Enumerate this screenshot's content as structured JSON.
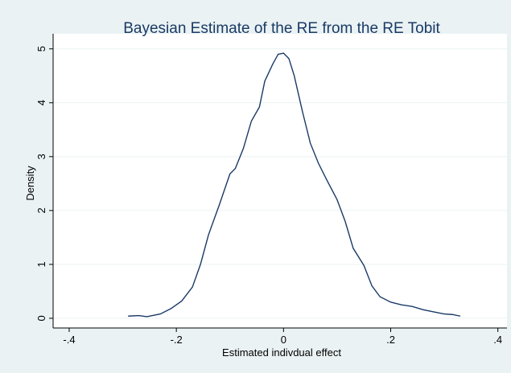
{
  "chart_data": {
    "type": "line",
    "title": "Bayesian Estimate of the RE from the RE Tobit",
    "x_label": "Estimated indivdual effect",
    "y_label": "Density",
    "color": "#1a3a66",
    "grid": true,
    "xlim": [
      -0.43,
      0.417
    ],
    "ylim": [
      -0.18,
      5.28
    ],
    "xticks": [
      {
        "value": -0.4,
        "label": "-.4"
      },
      {
        "value": -0.2,
        "label": "-.2"
      },
      0,
      {
        "value": 0.2,
        "label": ".2"
      },
      {
        "value": 0.4,
        "label": ".4"
      }
    ],
    "yticks": [
      0,
      1,
      2,
      3,
      4,
      5
    ],
    "x": [
      -0.29,
      -0.27,
      -0.255,
      -0.23,
      -0.21,
      -0.19,
      -0.17,
      -0.155,
      -0.14,
      -0.12,
      -0.1,
      -0.09,
      -0.075,
      -0.06,
      -0.045,
      -0.035,
      -0.02,
      -0.01,
      0.0,
      0.01,
      0.02,
      0.035,
      0.05,
      0.065,
      0.08,
      0.1,
      0.115,
      0.13,
      0.15,
      0.165,
      0.18,
      0.2,
      0.22,
      0.24,
      0.26,
      0.28,
      0.3,
      0.315,
      0.33
    ],
    "values": [
      0.04,
      0.05,
      0.03,
      0.08,
      0.18,
      0.32,
      0.58,
      1.0,
      1.55,
      2.1,
      2.68,
      2.78,
      3.15,
      3.66,
      3.92,
      4.4,
      4.72,
      4.9,
      4.92,
      4.82,
      4.5,
      3.85,
      3.25,
      2.88,
      2.58,
      2.2,
      1.8,
      1.3,
      0.98,
      0.6,
      0.4,
      0.3,
      0.25,
      0.22,
      0.16,
      0.12,
      0.08,
      0.07,
      0.04
    ]
  }
}
